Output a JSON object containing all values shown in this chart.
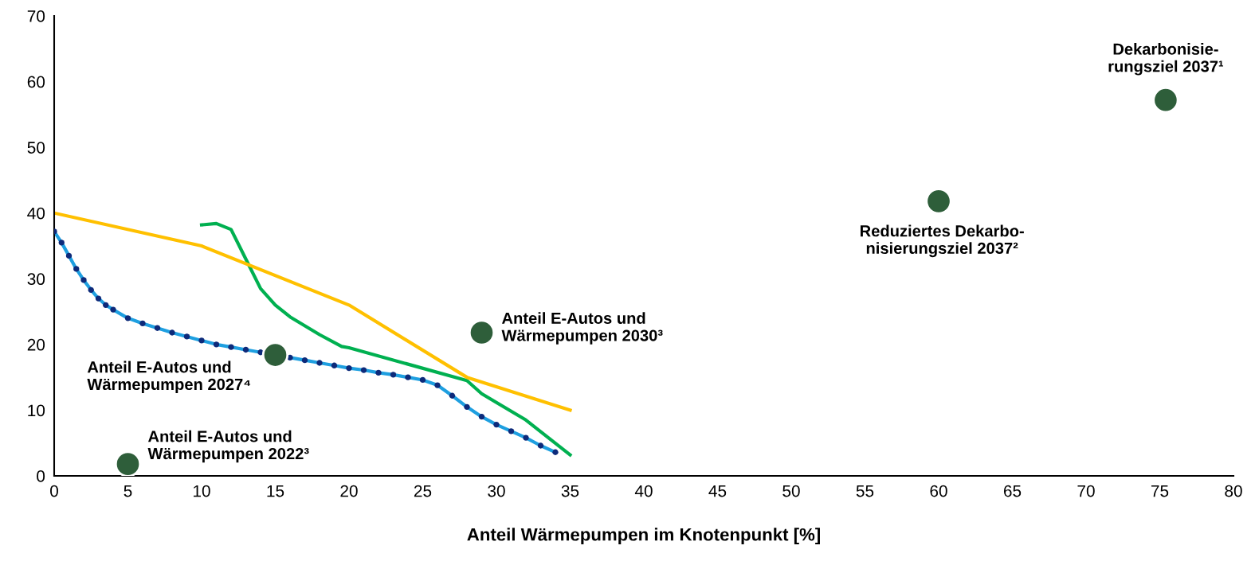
{
  "chart_data": {
    "type": "line",
    "xlabel": "Anteil Wärmepumpen im Knotenpunkt [%]",
    "xlim": [
      0,
      80
    ],
    "xticks": [
      0,
      5,
      10,
      15,
      20,
      25,
      30,
      35,
      40,
      45,
      50,
      55,
      60,
      65,
      70,
      75,
      80
    ],
    "ylim": [
      0,
      70
    ],
    "yticks": [
      0,
      10,
      20,
      30,
      40,
      50,
      60,
      70
    ],
    "grid": false,
    "legend": false,
    "series": [
      {
        "color": "#1e9fe0",
        "marker": "none",
        "x": [
          0,
          0.5,
          1,
          1.5,
          2,
          2.5,
          3,
          3.5,
          4,
          5,
          6,
          7,
          8,
          9,
          10,
          11,
          12,
          13,
          14,
          16,
          17,
          18,
          19,
          20,
          21,
          22,
          23,
          24,
          25,
          26,
          27,
          28,
          29,
          30,
          31,
          32,
          33,
          34
        ],
        "values": [
          37.2,
          35.5,
          33.5,
          31.5,
          29.8,
          28.3,
          27,
          26,
          25.3,
          24,
          23.2,
          22.5,
          21.8,
          21.2,
          20.6,
          20.0,
          19.6,
          19.2,
          18.8,
          18,
          17.6,
          17.2,
          16.8,
          16.4,
          16.1,
          15.7,
          15.4,
          15,
          14.6,
          13.8,
          12.2,
          10.5,
          9,
          7.8,
          6.8,
          5.8,
          4.6,
          3.6
        ]
      },
      {
        "type": "scatter",
        "color": "#0d2a7a",
        "marker": "circle",
        "x": [
          0,
          0.5,
          1,
          1.5,
          2,
          2.5,
          3,
          3.5,
          4,
          5,
          6,
          7,
          8,
          9,
          10,
          11,
          12,
          13,
          14,
          15,
          16,
          17,
          18,
          19,
          20,
          21,
          22,
          23,
          24,
          25,
          26,
          27,
          28,
          29,
          30,
          31,
          32,
          33,
          34
        ],
        "values": [
          37.2,
          35.5,
          33.5,
          31.5,
          29.8,
          28.3,
          27,
          26,
          25.3,
          24,
          23.2,
          22.5,
          21.8,
          21.2,
          20.6,
          20.0,
          19.6,
          19.2,
          18.8,
          null,
          18,
          17.6,
          17.2,
          16.8,
          16.4,
          16.1,
          15.7,
          15.4,
          15,
          14.6,
          13.8,
          12.2,
          10.5,
          9,
          7.8,
          6.8,
          5.8,
          4.6,
          3.6
        ]
      },
      {
        "color": "#00b050",
        "marker": "none",
        "x": [
          10,
          11,
          12,
          13,
          14,
          15,
          16,
          18,
          19.5,
          20,
          24,
          28,
          29,
          32,
          35
        ],
        "values": [
          38.2,
          38.4,
          37.5,
          33,
          28.5,
          26,
          24.2,
          21.5,
          19.7,
          19.5,
          17,
          14.5,
          12.5,
          8.5,
          3.2
        ]
      },
      {
        "color": "#ffc000",
        "marker": "none",
        "x": [
          0,
          10,
          20,
          28,
          35
        ],
        "values": [
          40,
          35,
          26,
          15,
          10
        ]
      },
      {
        "type": "scatter",
        "color": "#2e5e3a",
        "marker": "circle",
        "x": [
          5,
          15,
          29,
          60,
          75.4
        ],
        "values": [
          1.8,
          18.4,
          21.8,
          41.8,
          57.2
        ]
      }
    ],
    "annotations": [
      {
        "text": "Anteil E-Autos und\nWärmepumpen 2022³",
        "x": 5,
        "y": 1.8
      },
      {
        "text": "Anteil E-Autos und\nWärmepumpen 2027⁴",
        "x": 15,
        "y": 18.4
      },
      {
        "text": "Anteil E-Autos und\nWärmepumpen 2030³",
        "x": 29,
        "y": 21.8
      },
      {
        "text": "Reduziertes Dekarbo-\nnisierungsziel 2037²",
        "x": 60,
        "y": 41.8
      },
      {
        "text": "Dekarbonisie-\nrungsziel 2037¹",
        "x": 75.4,
        "y": 57.2
      }
    ]
  }
}
